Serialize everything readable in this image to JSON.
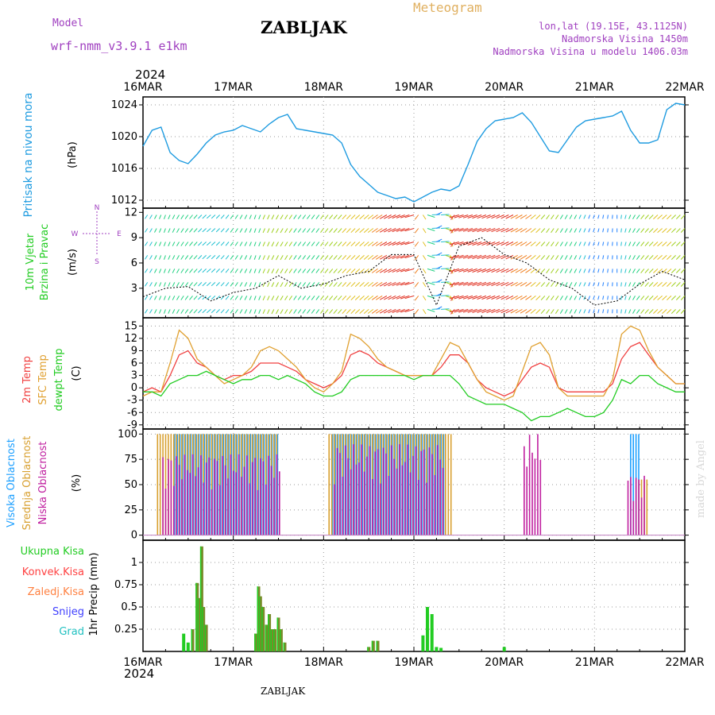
{
  "header": {
    "model_label": "Model",
    "model_name": "wrf-nmm_v3.9.1  e1km",
    "station": "ZABLJAK",
    "product": "Meteogram",
    "coords": "lon,lat (19.15E, 43.1125N)",
    "altitude": "Nadmorska Visina 1450m",
    "model_altitude": "Nadmorska Visina u modelu 1406.03m",
    "year": "2024",
    "footer_station": "ZABLJAK",
    "credit": "made by Angel"
  },
  "colors": {
    "pressure": "#1e9be0",
    "temp2m": "#f04040",
    "sfc": "#e0a030",
    "dewpt": "#22cc22",
    "high_cloud": "#1ea0ff",
    "mid_cloud": "#d8a030",
    "low_cloud": "#c020a0",
    "precip_total": "#22cc22",
    "precip_conv": "#ff4040",
    "precip_frozen": "#ff8040",
    "snow": "#4040ff",
    "hail": "#20c0c0",
    "label_purple": "#a040c0"
  },
  "chart_data": [
    {
      "panel": "pressure",
      "type": "line",
      "x_ticks": [
        "16MAR",
        "17MAR",
        "18MAR",
        "19MAR",
        "20MAR",
        "21MAR",
        "22MAR"
      ],
      "ylabel_left": "Pritisak na nivou mora",
      "unit": "(hPa)",
      "ylim": [
        1011,
        1025
      ],
      "yticks": [
        "1012",
        "1016",
        "1020",
        "1024"
      ],
      "grid": true,
      "x_days": [
        0,
        0.1,
        0.2,
        0.3,
        0.4,
        0.5,
        0.6,
        0.7,
        0.8,
        0.9,
        1.0,
        1.1,
        1.2,
        1.3,
        1.4,
        1.5,
        1.6,
        1.7,
        1.8,
        1.9,
        2.0,
        2.1,
        2.2,
        2.3,
        2.4,
        2.5,
        2.6,
        2.7,
        2.8,
        2.9,
        3.0,
        3.1,
        3.2,
        3.3,
        3.4,
        3.5,
        3.6,
        3.7,
        3.8,
        3.9,
        4.0,
        4.1,
        4.2,
        4.3,
        4.4,
        4.5,
        4.6,
        4.7,
        4.8,
        4.9,
        5.0,
        5.1,
        5.2,
        5.3,
        5.4,
        5.5,
        5.6,
        5.7,
        5.8,
        5.9,
        6.0
      ],
      "values": [
        1018.8,
        1020.8,
        1021.2,
        1018.0,
        1017.0,
        1016.6,
        1017.8,
        1019.2,
        1020.2,
        1020.6,
        1020.8,
        1021.4,
        1021.0,
        1020.6,
        1021.6,
        1022.4,
        1022.8,
        1021.0,
        1020.8,
        1020.6,
        1020.4,
        1020.2,
        1019.2,
        1016.5,
        1015.0,
        1014.0,
        1013.0,
        1012.6,
        1012.2,
        1012.4,
        1011.8,
        1012.4,
        1013.0,
        1013.4,
        1013.2,
        1013.8,
        1016.5,
        1019.4,
        1021.0,
        1022.0,
        1022.2,
        1022.4,
        1023.0,
        1021.8,
        1020.0,
        1018.2,
        1018.0,
        1019.6,
        1021.2,
        1022.0,
        1022.2,
        1022.4,
        1022.6,
        1023.2,
        1020.8,
        1019.2,
        1019.2,
        1019.6,
        1023.4,
        1024.2,
        1024.0
      ]
    },
    {
      "panel": "wind",
      "type": "line",
      "ylabel_left": [
        "10m Vjetar",
        "Brzina i Pravac"
      ],
      "unit": "(m/s)",
      "ylim": [
        -0.5,
        12.5
      ],
      "yticks": [
        "3",
        "6",
        "9",
        "12"
      ],
      "compass": [
        "N",
        "S",
        "W",
        "E"
      ],
      "x_days": [
        0,
        0.25,
        0.5,
        0.75,
        1.0,
        1.25,
        1.5,
        1.75,
        2.0,
        2.25,
        2.5,
        2.75,
        3.0,
        3.25,
        3.5,
        3.75,
        4.0,
        4.25,
        4.5,
        4.75,
        5.0,
        5.25,
        5.5,
        5.75,
        6.0
      ],
      "speed": [
        2.0,
        3.0,
        3.2,
        1.5,
        2.5,
        3.0,
        4.5,
        3.0,
        3.5,
        4.5,
        5.0,
        7.0,
        7.0,
        1.0,
        8.0,
        9.0,
        7.0,
        6.0,
        4.0,
        3.0,
        1.0,
        1.5,
        3.5,
        5.0,
        4.0
      ],
      "arrow_dir_deg": [
        200,
        190,
        200,
        210,
        200,
        190,
        195,
        200,
        200,
        205,
        210,
        225,
        240,
        45,
        240,
        235,
        230,
        220,
        200,
        195,
        190,
        180,
        200,
        210,
        205
      ]
    },
    {
      "panel": "temperature",
      "type": "line",
      "ylabel_left": [
        "2m Temp",
        "SFC Temp",
        "dewpt Temp"
      ],
      "unit": "(C)",
      "ylim": [
        -10,
        17
      ],
      "yticks": [
        "-9",
        "-6",
        "-3",
        "0",
        "3",
        "6",
        "9",
        "12",
        "15"
      ],
      "grid": true,
      "series": [
        {
          "name": "2m Temp",
          "x_days": [
            0,
            0.1,
            0.2,
            0.3,
            0.4,
            0.5,
            0.6,
            0.7,
            0.8,
            0.9,
            1.0,
            1.1,
            1.2,
            1.3,
            1.4,
            1.5,
            1.6,
            1.7,
            1.8,
            1.9,
            2.0,
            2.1,
            2.2,
            2.3,
            2.4,
            2.5,
            2.6,
            2.7,
            2.8,
            2.9,
            3.0,
            3.1,
            3.2,
            3.3,
            3.4,
            3.5,
            3.6,
            3.7,
            3.8,
            3.9,
            4.0,
            4.1,
            4.2,
            4.3,
            4.4,
            4.5,
            4.6,
            4.7,
            4.8,
            4.9,
            5.0,
            5.1,
            5.2,
            5.3,
            5.4,
            5.5,
            5.6,
            5.7,
            5.8,
            5.9,
            6.0
          ],
          "values": [
            -1,
            0,
            -1,
            3,
            8,
            9,
            6,
            5,
            3,
            2,
            3,
            3,
            4,
            6,
            6,
            6,
            5,
            4,
            2,
            1,
            0,
            1,
            3,
            8,
            9,
            8,
            6,
            5,
            4,
            3,
            3,
            3,
            3,
            5,
            8,
            8,
            6,
            2,
            0,
            -1,
            -2,
            -1,
            2,
            5,
            6,
            5,
            0,
            -1,
            -1,
            -1,
            -1,
            -1,
            1,
            7,
            10,
            11,
            8,
            5,
            3,
            1,
            1
          ]
        },
        {
          "name": "SFC Temp",
          "x_days": [
            0,
            0.1,
            0.2,
            0.3,
            0.4,
            0.5,
            0.6,
            0.7,
            0.8,
            0.9,
            1.0,
            1.1,
            1.2,
            1.3,
            1.4,
            1.5,
            1.6,
            1.7,
            1.8,
            1.9,
            2.0,
            2.1,
            2.2,
            2.3,
            2.4,
            2.5,
            2.6,
            2.7,
            2.8,
            2.9,
            3.0,
            3.1,
            3.2,
            3.3,
            3.4,
            3.5,
            3.6,
            3.7,
            3.8,
            3.9,
            4.0,
            4.1,
            4.2,
            4.3,
            4.4,
            4.5,
            4.6,
            4.7,
            4.8,
            4.9,
            5.0,
            5.1,
            5.2,
            5.3,
            5.4,
            5.5,
            5.6,
            5.7,
            5.8,
            5.9,
            6.0
          ],
          "values": [
            -2,
            -1,
            -1,
            6,
            14,
            12,
            7,
            5,
            3,
            1,
            2,
            3,
            5,
            9,
            10,
            9,
            7,
            5,
            2,
            0,
            -1,
            1,
            4,
            13,
            12,
            10,
            7,
            5,
            4,
            3,
            3,
            3,
            3,
            7,
            11,
            10,
            6,
            2,
            -1,
            -2,
            -3,
            -2,
            4,
            10,
            11,
            8,
            0,
            -2,
            -2,
            -2,
            -2,
            -2,
            2,
            13,
            15,
            14,
            9,
            5,
            3,
            1,
            1
          ]
        },
        {
          "name": "dewpt Temp",
          "x_days": [
            0,
            0.1,
            0.2,
            0.3,
            0.4,
            0.5,
            0.6,
            0.7,
            0.8,
            0.9,
            1.0,
            1.1,
            1.2,
            1.3,
            1.4,
            1.5,
            1.6,
            1.7,
            1.8,
            1.9,
            2.0,
            2.1,
            2.2,
            2.3,
            2.4,
            2.5,
            2.6,
            2.7,
            2.8,
            2.9,
            3.0,
            3.1,
            3.2,
            3.3,
            3.4,
            3.5,
            3.6,
            3.7,
            3.8,
            3.9,
            4.0,
            4.1,
            4.2,
            4.3,
            4.4,
            4.5,
            4.6,
            4.7,
            4.8,
            4.9,
            5.0,
            5.1,
            5.2,
            5.3,
            5.4,
            5.5,
            5.6,
            5.7,
            5.8,
            5.9,
            6.0
          ],
          "values": [
            -1,
            -1,
            -2,
            1,
            2,
            3,
            3,
            4,
            3,
            2,
            1,
            2,
            2,
            3,
            3,
            2,
            3,
            2,
            1,
            -1,
            -2,
            -2,
            -1,
            2,
            3,
            3,
            3,
            3,
            3,
            3,
            2,
            3,
            3,
            3,
            3,
            1,
            -2,
            -3,
            -4,
            -4,
            -4,
            -5,
            -6,
            -8,
            -7,
            -7,
            -6,
            -5,
            -6,
            -7,
            -7,
            -6,
            -3,
            2,
            1,
            3,
            3,
            1,
            0,
            -1,
            -1
          ]
        }
      ]
    },
    {
      "panel": "cloud",
      "type": "bar",
      "ylabel_left": [
        "Visoka Oblacnost",
        "Srednja Oblacnost",
        "Niska Oblacnost"
      ],
      "unit": "(%)",
      "ylim": [
        -5,
        105
      ],
      "yticks": [
        "0",
        "25",
        "50",
        "75",
        "100"
      ],
      "grid": true,
      "series": [
        {
          "name": "Visoka Oblacnost",
          "spans": [
            [
              0.35,
              1.5,
              100
            ],
            [
              2.1,
              3.35,
              100
            ],
            [
              5.4,
              5.52,
              100
            ]
          ]
        },
        {
          "name": "Srednja Oblacnost",
          "spans": [
            [
              0.15,
              1.5,
              100
            ],
            [
              2.05,
              3.4,
              100
            ],
            [
              5.45,
              5.6,
              55
            ]
          ]
        },
        {
          "name": "Niska Oblacnost",
          "spans": [
            [
              0.2,
              1.5,
              80
            ],
            [
              2.1,
              3.3,
              90
            ],
            [
              4.2,
              4.4,
              100
            ],
            [
              5.35,
              5.55,
              60
            ]
          ]
        }
      ]
    },
    {
      "panel": "precip",
      "type": "bar",
      "ylabel_left": [
        "Ukupna Kisa",
        "Konvek.Kisa",
        "Zaledj.Kisa",
        "Snijeg",
        "Grad"
      ],
      "unit": "1hr Precip (mm)",
      "ylim": [
        0,
        1.25
      ],
      "yticks": [
        "0.25",
        "0.5",
        "0.75",
        "1"
      ],
      "grid": true,
      "x_days": [
        0.45,
        0.5,
        0.55,
        0.6,
        0.62,
        0.65,
        0.67,
        0.7,
        1.25,
        1.28,
        1.3,
        1.33,
        1.37,
        1.4,
        1.43,
        1.46,
        1.5,
        1.53,
        1.57,
        2.5,
        2.55,
        2.6,
        3.1,
        3.15,
        3.2,
        3.25,
        3.3,
        4.0
      ],
      "values": [
        0.2,
        0.1,
        0.25,
        0.77,
        0.6,
        1.18,
        0.5,
        0.3,
        0.2,
        0.73,
        0.62,
        0.5,
        0.3,
        0.42,
        0.25,
        0.25,
        0.38,
        0.25,
        0.1,
        0.05,
        0.12,
        0.12,
        0.18,
        0.5,
        0.42,
        0.05,
        0.04,
        0.05
      ]
    }
  ]
}
